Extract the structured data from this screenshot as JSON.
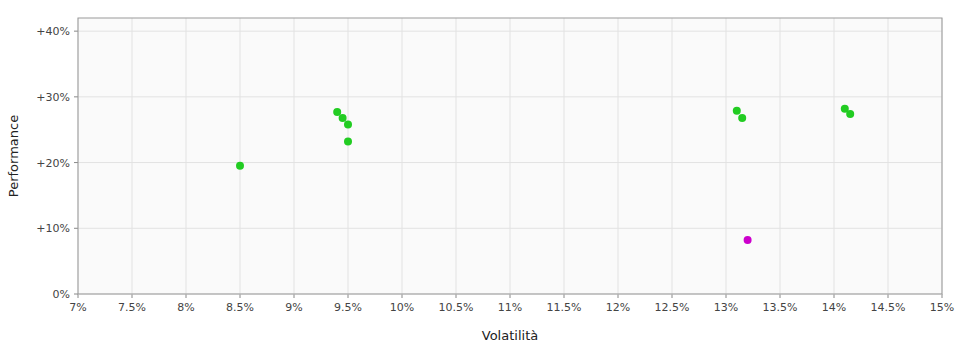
{
  "chart_data": {
    "type": "scatter",
    "xlabel": "Volatilità",
    "ylabel": "Performance",
    "xlim": [
      0.07,
      0.15
    ],
    "ylim": [
      0.0,
      0.42
    ],
    "xticks": [
      {
        "value": 0.07,
        "label": "7%"
      },
      {
        "value": 0.075,
        "label": "7.5%"
      },
      {
        "value": 0.08,
        "label": "8%"
      },
      {
        "value": 0.085,
        "label": "8.5%"
      },
      {
        "value": 0.09,
        "label": "9%"
      },
      {
        "value": 0.095,
        "label": "9.5%"
      },
      {
        "value": 0.1,
        "label": "10%"
      },
      {
        "value": 0.105,
        "label": "10.5%"
      },
      {
        "value": 0.11,
        "label": "11%"
      },
      {
        "value": 0.115,
        "label": "11.5%"
      },
      {
        "value": 0.12,
        "label": "12%"
      },
      {
        "value": 0.125,
        "label": "12.5%"
      },
      {
        "value": 0.13,
        "label": "13%"
      },
      {
        "value": 0.135,
        "label": "13.5%"
      },
      {
        "value": 0.14,
        "label": "14%"
      },
      {
        "value": 0.145,
        "label": "14.5%"
      },
      {
        "value": 0.15,
        "label": "15%"
      }
    ],
    "yticks": [
      {
        "value": 0.0,
        "label": "0%"
      },
      {
        "value": 0.1,
        "label": "+10%"
      },
      {
        "value": 0.2,
        "label": "+20%"
      },
      {
        "value": 0.3,
        "label": "+30%"
      },
      {
        "value": 0.4,
        "label": "+40%"
      }
    ],
    "grid": true,
    "series": [
      {
        "color": "#22cc22",
        "x": [
          0.085,
          0.094,
          0.0945,
          0.095,
          0.095,
          0.131,
          0.1315,
          0.141,
          0.1415
        ],
        "values": [
          0.195,
          0.277,
          0.268,
          0.258,
          0.232,
          0.279,
          0.268,
          0.282,
          0.274
        ]
      },
      {
        "color": "#cc00cc",
        "x": [
          0.132
        ],
        "values": [
          0.082
        ]
      }
    ]
  }
}
